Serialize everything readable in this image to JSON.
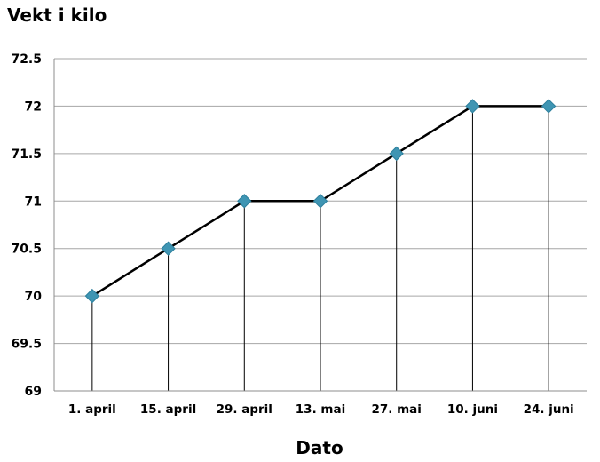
{
  "chart_data": {
    "type": "line",
    "ylabel": "Vekt i kilo",
    "xlabel": "Dato",
    "categories": [
      "1. april",
      "15. april",
      "29. april",
      "13. mai",
      "27. mai",
      "10. juni",
      "24. juni"
    ],
    "series": [
      {
        "values": [
          70,
          70.5,
          71,
          71,
          71.5,
          72,
          72
        ]
      }
    ],
    "ylim": [
      69,
      72.5
    ],
    "yticks": [
      "69",
      "69.5",
      "70",
      "70.5",
      "71",
      "71.5",
      "72",
      "72.5"
    ],
    "grid": "horizontal",
    "drop_lines": true,
    "line_color": "#000000",
    "marker": "diamond",
    "marker_color": "#3f95b3"
  }
}
